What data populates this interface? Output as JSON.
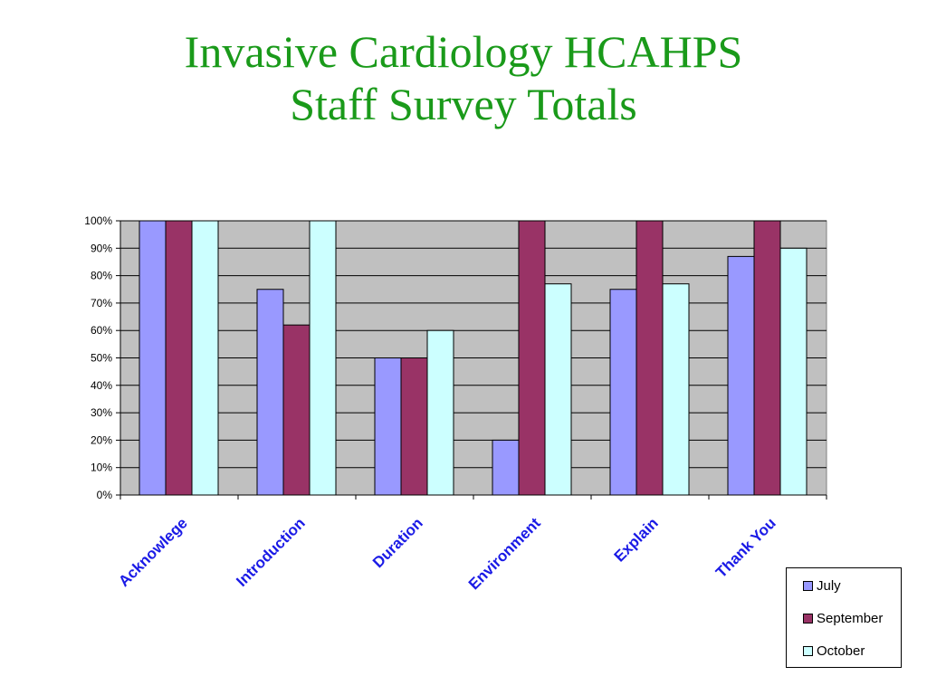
{
  "title": {
    "line1": "Invasive Cardiology HCAHPS",
    "line2": "Staff Survey Totals"
  },
  "colors": {
    "title": "#1a9a1a",
    "plot_background": "#c0c0c0",
    "category_labels": "#1a1ae6"
  },
  "chart_data": {
    "type": "bar",
    "categories": [
      "Acknowlege",
      "Introduction",
      "Duration",
      "Environment",
      "Explain",
      "Thank You"
    ],
    "series": [
      {
        "name": "July",
        "color": "#9999ff",
        "values": [
          100,
          75,
          50,
          20,
          75,
          87
        ]
      },
      {
        "name": "September",
        "color": "#993366",
        "values": [
          100,
          62,
          50,
          100,
          100,
          100
        ]
      },
      {
        "name": "October",
        "color": "#ccffff",
        "values": [
          100,
          100,
          60,
          77,
          77,
          90
        ]
      }
    ],
    "ylim": [
      0,
      100
    ],
    "ytick_labels": [
      "0%",
      "10%",
      "20%",
      "30%",
      "40%",
      "50%",
      "60%",
      "70%",
      "80%",
      "90%",
      "100%"
    ],
    "grid": true,
    "legend_position": "bottom-right"
  }
}
